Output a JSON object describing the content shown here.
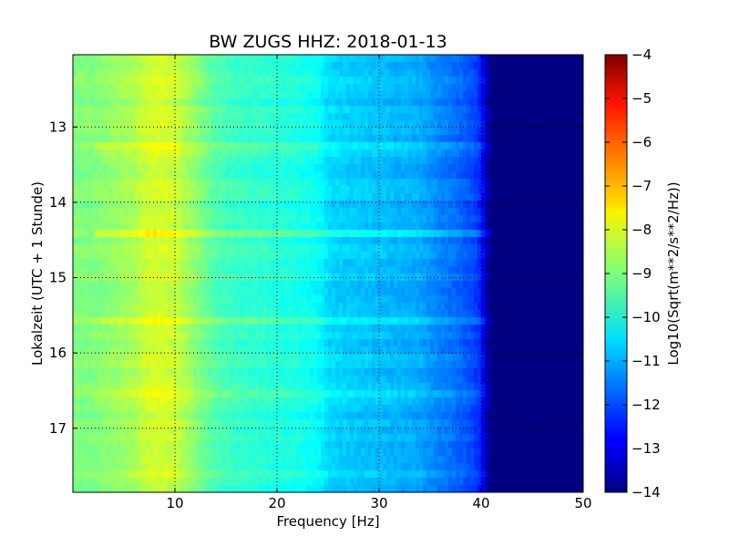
{
  "chart_data": {
    "type": "heatmap",
    "title": "BW ZUGS HHZ: 2018-01-13",
    "xlabel": "Frequency [Hz]",
    "ylabel": "Lokalzeit (UTC + 1 Stunde)",
    "colorbar_label": "Log10(Sqrt(m**2/s**2/Hz))",
    "xlim": [
      0,
      50
    ],
    "ylim": [
      12.04,
      17.85
    ],
    "y_inverted": true,
    "x_ticks": [
      10,
      20,
      30,
      40,
      50
    ],
    "y_ticks": [
      13,
      14,
      15,
      16,
      17
    ],
    "x_tick_labels": [
      "10",
      "20",
      "30",
      "40",
      "50"
    ],
    "y_tick_labels": [
      "13",
      "14",
      "15",
      "16",
      "17"
    ],
    "colorbar_range": [
      -14,
      -4
    ],
    "colorbar_ticks": [
      -4,
      -5,
      -6,
      -7,
      -8,
      -9,
      -10,
      -11,
      -12,
      -13,
      -14
    ],
    "colorbar_tick_labels": [
      "−4",
      "−5",
      "−6",
      "−7",
      "−8",
      "−9",
      "−10",
      "−11",
      "−12",
      "−13",
      "−14"
    ],
    "colormap": "jet",
    "grid": true,
    "frequency_profile": {
      "freq_hz": [
        0,
        2,
        4,
        6,
        7,
        8,
        9,
        10,
        11,
        12,
        13,
        14,
        16,
        18,
        20,
        22,
        24,
        25,
        26,
        28,
        30,
        32,
        34,
        35,
        36,
        37,
        38,
        39,
        40,
        40.5,
        41,
        42,
        50
      ],
      "log10_amplitude": [
        -9.0,
        -9.0,
        -8.8,
        -8.6,
        -8.3,
        -8.2,
        -8.2,
        -8.3,
        -8.6,
        -8.9,
        -9.2,
        -9.5,
        -9.7,
        -9.8,
        -9.9,
        -10.0,
        -10.2,
        -10.6,
        -10.7,
        -10.8,
        -10.9,
        -11.0,
        -11.1,
        -11.3,
        -11.5,
        -11.6,
        -11.8,
        -12.0,
        -12.4,
        -13.5,
        -14.0,
        -14.0,
        -14.0
      ]
    },
    "time_bands": [
      {
        "time_h": 14.45,
        "log10_offset": 0.7
      },
      {
        "time_h": 13.3,
        "log10_offset": 0.3
      },
      {
        "time_h": 15.6,
        "log10_offset": 0.3
      },
      {
        "time_h": 16.6,
        "log10_offset": 0.3
      }
    ]
  }
}
